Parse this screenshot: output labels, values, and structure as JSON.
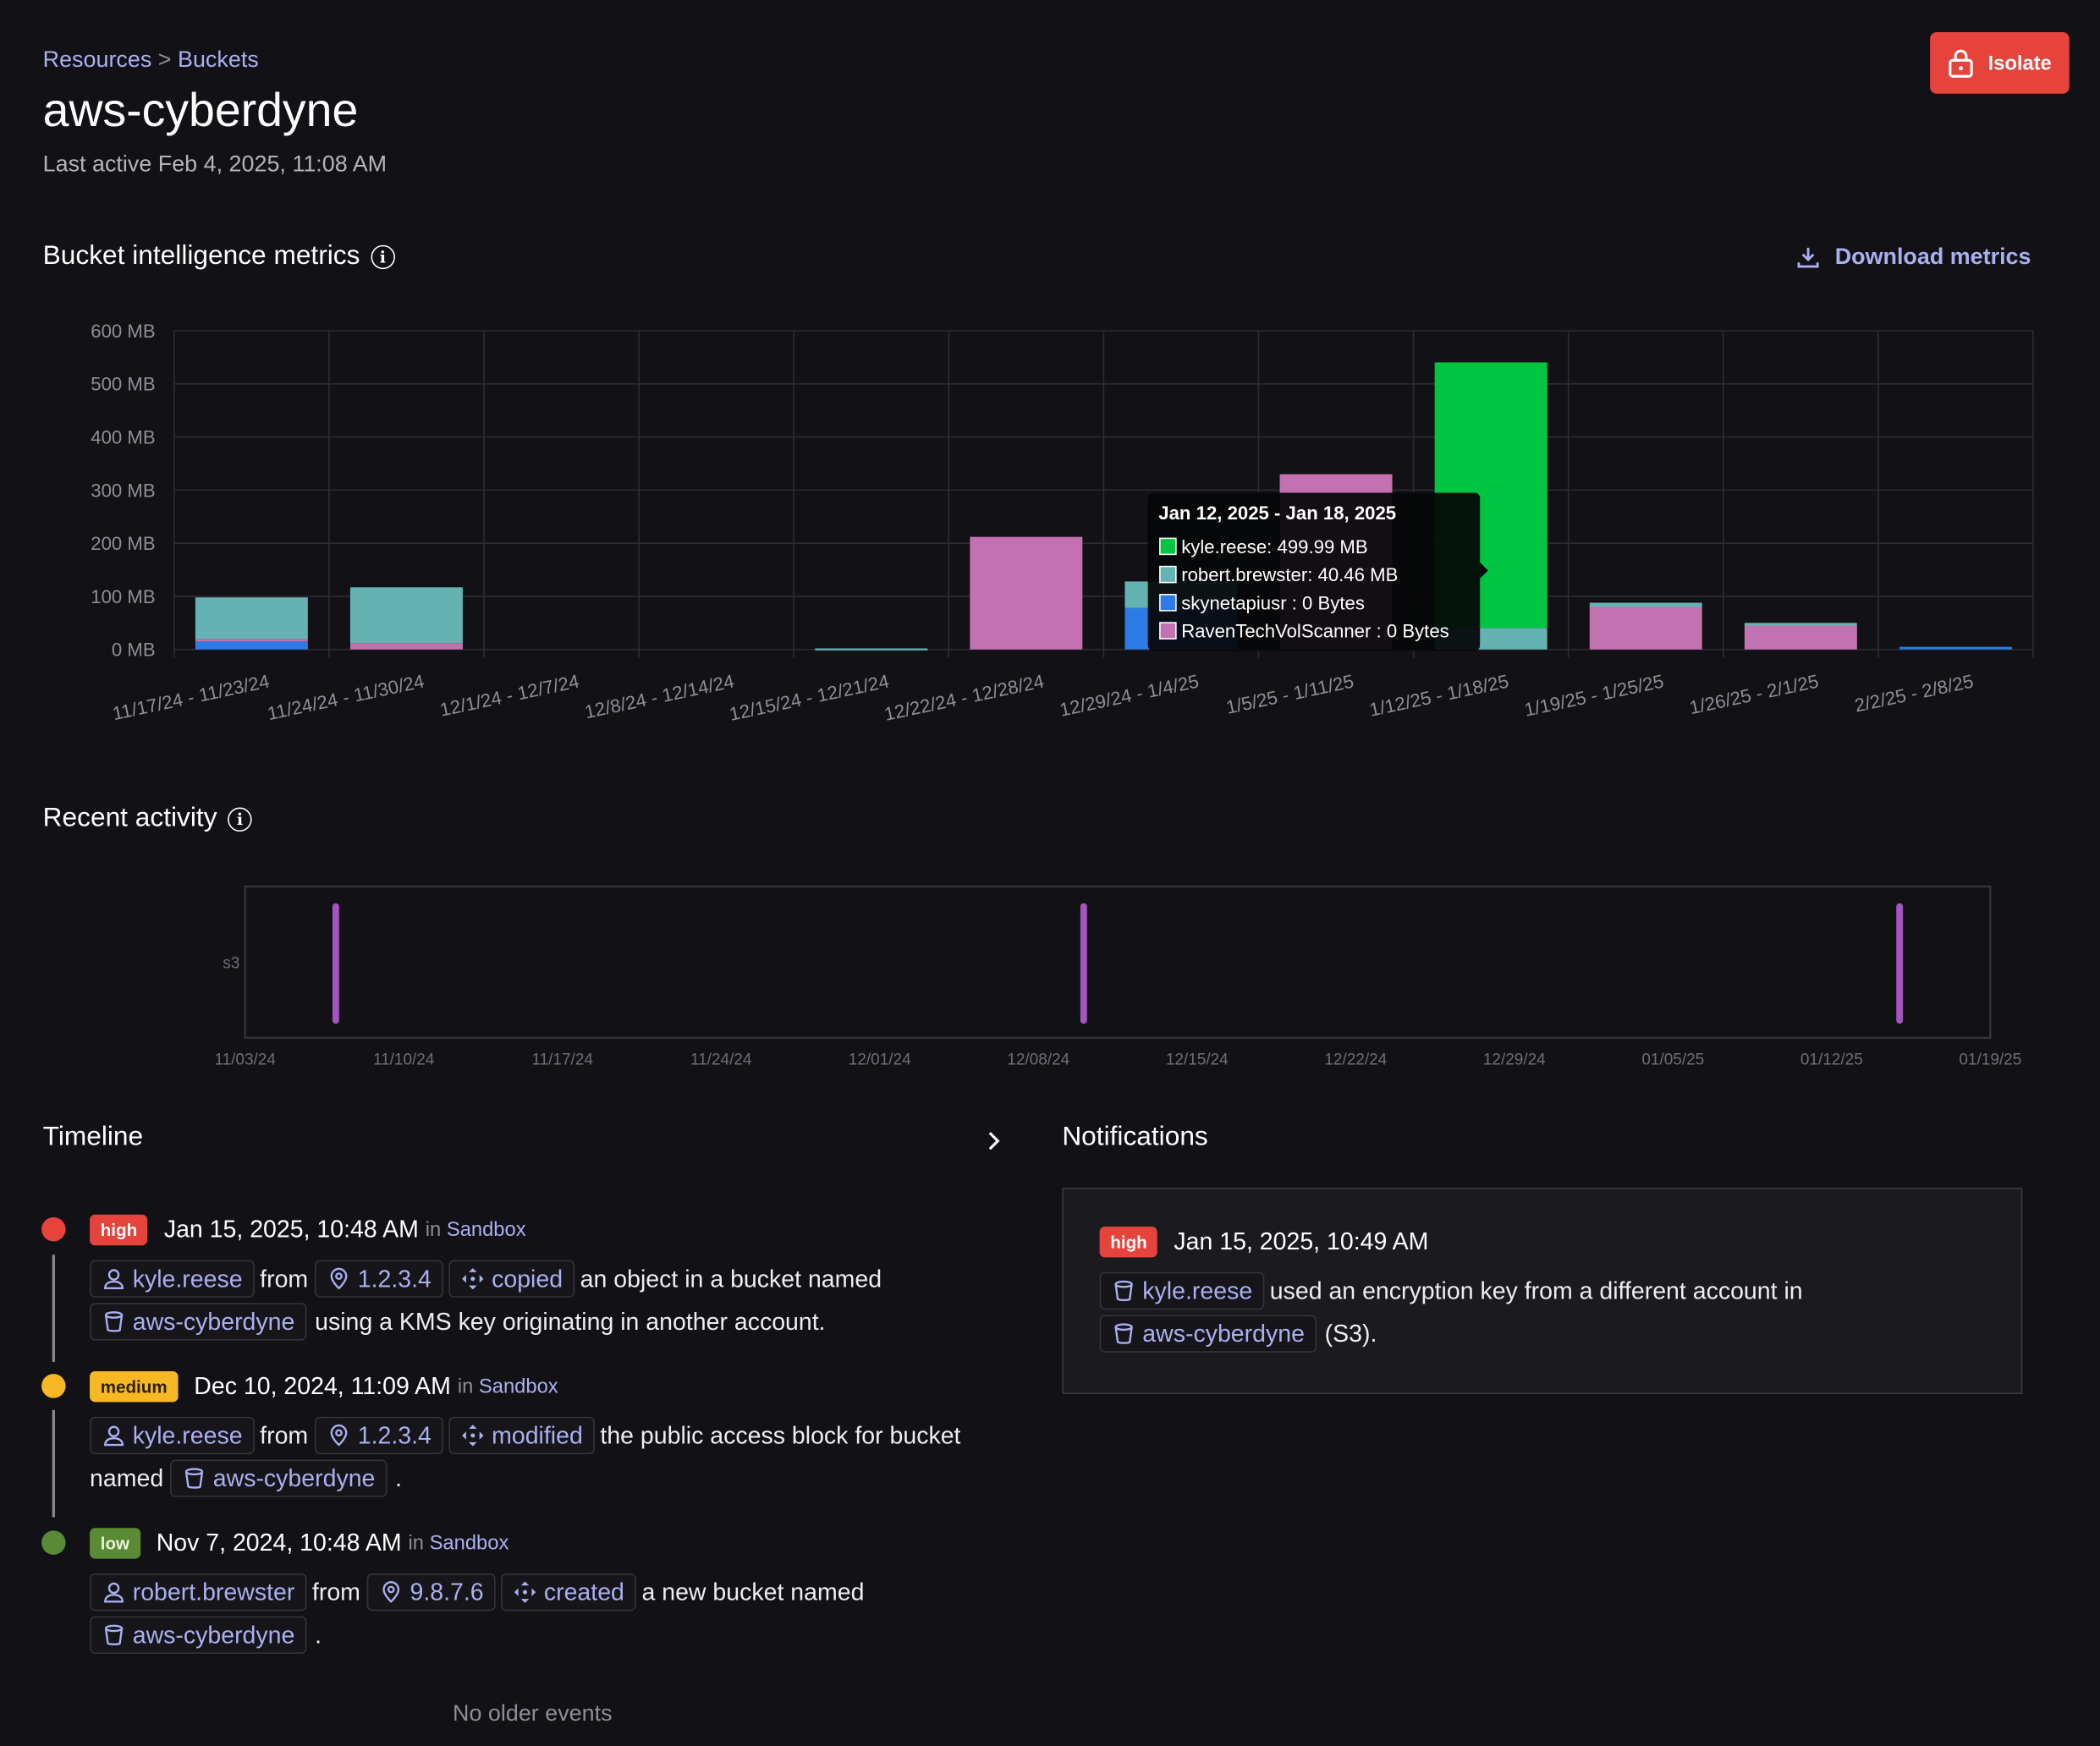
{
  "breadcrumb": {
    "resources": "Resources",
    "sep": ">",
    "buckets": "Buckets"
  },
  "header": {
    "title": "aws-cyberdyne",
    "last_active": "Last active Feb 4, 2025, 11:08 AM",
    "isolate_label": "Isolate"
  },
  "metrics": {
    "title": "Bucket intelligence metrics",
    "download_label": "Download metrics"
  },
  "colors": {
    "kyle": "#00c542",
    "robert": "#65b2b2",
    "skynet": "#2d7be6",
    "raven": "#c272b0",
    "accent": "#aab0f0",
    "high": "#e5433b",
    "medium": "#f7b824",
    "low": "#5a8a35"
  },
  "chart_data": {
    "type": "bar",
    "stacked": true,
    "ylabel_ticks": [
      "0 MB",
      "100 MB",
      "200 MB",
      "300 MB",
      "400 MB",
      "500 MB",
      "600 MB"
    ],
    "ylim": [
      0,
      600
    ],
    "categories": [
      "11/17/24 - 11/23/24",
      "11/24/24 - 11/30/24",
      "12/1/24 - 12/7/24",
      "12/8/24 - 12/14/24",
      "12/15/24 - 12/21/24",
      "12/22/24 - 12/28/24",
      "12/29/24 - 1/4/25",
      "1/5/25 - 1/11/25",
      "1/12/25 - 1/18/25",
      "1/19/25 - 1/25/25",
      "1/26/25 - 2/1/25",
      "2/2/25 - 2/8/25"
    ],
    "series": [
      {
        "name": "skynetapiusr",
        "key": "skynet",
        "values": [
          15,
          0,
          0,
          0,
          0,
          0,
          78,
          0,
          0,
          0,
          0,
          5
        ]
      },
      {
        "name": "RavenTechVolScanner",
        "key": "raven",
        "values": [
          5,
          12,
          0,
          0,
          0,
          212,
          0,
          330,
          0,
          80,
          45,
          0
        ]
      },
      {
        "name": "robert.brewster",
        "key": "robert",
        "values": [
          78,
          105,
          0,
          0,
          2,
          0,
          50,
          0,
          40.46,
          8,
          5,
          0
        ]
      },
      {
        "name": "kyle.reese",
        "key": "kyle",
        "values": [
          0,
          0,
          0,
          0,
          0,
          0,
          0,
          0,
          499.99,
          0,
          0,
          0
        ]
      }
    ],
    "grid": true,
    "tooltip": {
      "title": "Jan 12, 2025 - Jan 18, 2025",
      "rows": [
        {
          "key": "kyle",
          "label": "kyle.reese: 499.99 MB"
        },
        {
          "key": "robert",
          "label": "robert.brewster: 40.46 MB"
        },
        {
          "key": "skynet",
          "label": "skynetapiusr : 0 Bytes"
        },
        {
          "key": "raven",
          "label": "RavenTechVolScanner : 0 Bytes"
        }
      ]
    }
  },
  "activity": {
    "title": "Recent activity",
    "row_label": "s3",
    "ticks": [
      "11/03/24",
      "11/10/24",
      "11/17/24",
      "11/24/24",
      "12/01/24",
      "12/08/24",
      "12/15/24",
      "12/22/24",
      "12/29/24",
      "01/05/25",
      "01/12/25",
      "01/19/25"
    ],
    "events": [
      "11/07/24",
      "12/10/24",
      "01/15/25"
    ]
  },
  "timeline": {
    "title": "Timeline",
    "in_label": "in",
    "env": "Sandbox",
    "from": "from",
    "events": [
      {
        "severity": "high",
        "date": "Jan 15, 2025, 10:48 AM",
        "user": "kyle.reese",
        "ip": "1.2.3.4",
        "action": "copied",
        "text1": "an object in a bucket named",
        "bucket": "aws-cyberdyne",
        "text2": "using a KMS key originating in another account."
      },
      {
        "severity": "medium",
        "date": "Dec 10, 2024, 11:09 AM",
        "user": "kyle.reese",
        "ip": "1.2.3.4",
        "action": "modified",
        "text1": "the public access block for bucket",
        "pre": "named",
        "bucket": "aws-cyberdyne",
        "text2": "."
      },
      {
        "severity": "low",
        "date": "Nov 7, 2024, 10:48 AM",
        "user": "robert.brewster",
        "ip": "9.8.7.6",
        "action": "created",
        "text1": "a new bucket named",
        "bucket": "aws-cyberdyne",
        "text2": "."
      }
    ],
    "footer": "No older events"
  },
  "notifications": {
    "title": "Notifications",
    "item": {
      "severity": "high",
      "date": "Jan 15, 2025, 10:49 AM",
      "user": "kyle.reese",
      "text1": "used an encryption key from a different account in",
      "bucket": "aws-cyberdyne",
      "text2": "(S3)."
    }
  }
}
